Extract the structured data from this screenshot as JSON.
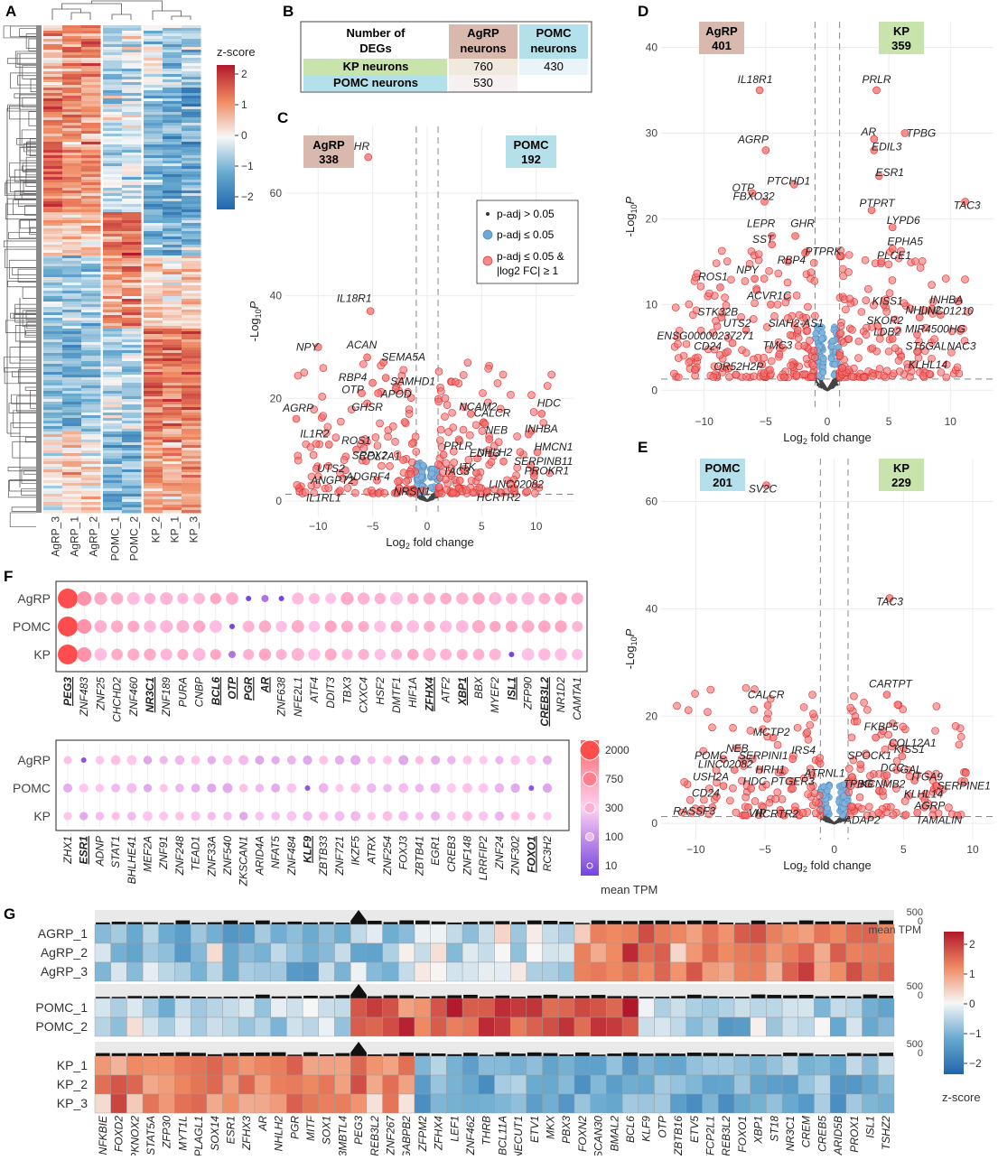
{
  "panel_labels": [
    "A",
    "B",
    "C",
    "D",
    "E",
    "F",
    "G"
  ],
  "panel_a": {
    "samples": [
      "AgRP_3",
      "AgRP_1",
      "AgRP_2",
      "POMC_1",
      "POMC_2",
      "KP_2",
      "KP_1",
      "KP_3"
    ],
    "legend_title": "z-score",
    "legend_ticks": [
      "2",
      "1",
      "0",
      "−1",
      "−2"
    ]
  },
  "panel_b": {
    "corner": "Number of DEGs",
    "col_headers": [
      "AgRP neurons",
      "POMC neurons"
    ],
    "row_headers": [
      "KP neurons",
      "POMC neurons"
    ],
    "cells": [
      [
        "760",
        "430"
      ],
      [
        "530",
        ""
      ]
    ],
    "colors": {
      "agrp": "#d9b8ae",
      "pomc": "#b3e0ea",
      "kp": "#c9e3ad"
    }
  },
  "panel_c": {
    "left_tag": "AgRP",
    "left_count": "338",
    "right_tag": "POMC",
    "right_count": "192",
    "ylabel": "-Log10P",
    "xlabel": "Log2 fold change",
    "xticks": [
      "−10",
      "−5",
      "0",
      "5",
      "10"
    ],
    "yticks": [
      "0",
      "20",
      "40",
      "60"
    ],
    "legend": [
      "p-adj > 0.05",
      "p-adj ≤ 0.05",
      "p-adj ≤ 0.05 &",
      "|log2 FC| ≥ 1"
    ],
    "labels": [
      "GHR",
      "IL18R1",
      "NPY",
      "ACAN",
      "SEMA5A",
      "RBP4",
      "SAMHD1",
      "OTP",
      "APOD",
      "GHSR",
      "AGRP",
      "IL1R2",
      "ROS1",
      "SRPX2",
      "UTS2",
      "COL7A1",
      "ANGPT2",
      "ADGRF4",
      "IL1RL1",
      "HDC",
      "NCAM2",
      "CALCR",
      "INHBA",
      "NEB",
      "PRLR",
      "HMCN1",
      "EDIL3",
      "SERPINB11",
      "NHLH2",
      "NRSN1",
      "ITK",
      "PROKR1",
      "TAC3",
      "LINC02082",
      "HCRTR2"
    ]
  },
  "panel_d": {
    "left_tag": "AgRP",
    "left_count": "401",
    "right_tag": "KP",
    "right_count": "359",
    "ylabel": "-Log10P",
    "xlabel": "Log2 fold change",
    "xticks": [
      "−10",
      "−5",
      "0",
      "5",
      "10"
    ],
    "yticks": [
      "0",
      "10",
      "20",
      "30",
      "40"
    ],
    "labels": [
      "IL18R1",
      "PRLR",
      "AR",
      "TPBG",
      "EDIL3",
      "AGRP",
      "ESR1",
      "OTP",
      "PTCHD1",
      "FBXO32",
      "PTPRT",
      "TAC3",
      "LYPD6",
      "LEPR",
      "GHR",
      "SST",
      "PTPRK",
      "EPHA5",
      "RBP4",
      "PLCE1",
      "NPY",
      "ROS1",
      "NHLH2",
      "ACVR1C",
      "INHBA",
      "STK32B",
      "KISS1",
      "LINC01210",
      "SKOR2",
      "UTS2",
      "SIAH2-AS1",
      "MIR4500HG",
      "LDB2",
      "ENSG00000237271",
      "ST6GALNAC3",
      "CD24",
      "TMC3",
      "KLHL14",
      "OR52H2P"
    ]
  },
  "panel_e": {
    "left_tag": "POMC",
    "left_count": "201",
    "right_tag": "KP",
    "right_count": "229",
    "ylabel": "-Log10P",
    "xlabel": "Log2 fold change",
    "xticks": [
      "−10",
      "−5",
      "0",
      "5",
      "10"
    ],
    "yticks": [
      "0",
      "20",
      "40",
      "60"
    ],
    "labels": [
      "SV2C",
      "TAC3",
      "CARTPT",
      "CALCR",
      "MCTP2",
      "FKBP5",
      "COL12A1",
      "NEB",
      "KISS1",
      "POMC",
      "SERPINI1",
      "IRS4",
      "SPOCK1",
      "GAL",
      "HRH1",
      "ATRNL1",
      "DCC",
      "LINC02082",
      "ITGA9",
      "TPBG",
      "SERPINE1",
      "USH2A",
      "HDC",
      "PTGER3",
      "KCNMB2",
      "KLHL14",
      "CD24",
      "AGRP",
      "RASSF3",
      "VIP",
      "HCRTR2",
      "ADAP2",
      "TAMALIN"
    ]
  },
  "panel_f": {
    "rows": [
      "AgRP",
      "POMC",
      "KP"
    ],
    "genes_top": [
      "PEG3",
      "ZNF483",
      "ZNF25",
      "CHCHD2",
      "ZNF460",
      "NR3C1",
      "ZNF189",
      "PURA",
      "CNBP",
      "BCL6",
      "OTP",
      "PGR",
      "AR",
      "ZNF638",
      "NFE2L1",
      "ATF4",
      "DDIT3",
      "TBX3",
      "CXXC4",
      "HSF2",
      "DMTF1",
      "HIF1A",
      "ZFHX4",
      "ATF2",
      "XBP1",
      "BBX",
      "MYEF2",
      "ISL1",
      "ZFP90",
      "CREB3L2",
      "NR1D2",
      "CAMTA1"
    ],
    "genes_bottom": [
      "ZHX1",
      "ESR1",
      "ADNP",
      "STAT1",
      "BHLHE41",
      "MEF2A",
      "ZNF91",
      "ZNF248",
      "TEAD1",
      "ZNF33A",
      "ZNF540",
      "ZKSCAN1",
      "ARID4A",
      "NFAT5",
      "ZNF484",
      "KLF9",
      "ZBTB33",
      "ZNF721",
      "IKZF5",
      "ATRX",
      "ZNF254",
      "FOXJ3",
      "ZBTB41",
      "EGR1",
      "CREB3",
      "ZNF148",
      "LRRFIP2",
      "ZNF24",
      "ZNF302",
      "FOXO1",
      "RC3H2"
    ],
    "legend_title": "mean TPM",
    "legend_ticks": [
      "2000",
      "750",
      "300",
      "100",
      "10"
    ]
  },
  "panel_g": {
    "rows": [
      "AGRP_1",
      "AgRP_2",
      "AgRP_3",
      "POMC_1",
      "POMC_2",
      "KP_1",
      "KP_2",
      "KP_3"
    ],
    "genes": [
      "NFKBIE",
      "FOXD2",
      "PKNOX2",
      "STAT5A",
      "ZFP30",
      "MYT1L",
      "PLAGL1",
      "SOX14",
      "ESR1",
      "ZFHX3",
      "AR",
      "NHLH2",
      "PGR",
      "MITF",
      "SOX1",
      "L3MBTL4",
      "PEG3",
      "CREB3L2",
      "ZNF267",
      "GABPB2",
      "ZFPM2",
      "ZFHX4",
      "LEF1",
      "ZNF462",
      "THRB",
      "BCL11A",
      "ONECUT1",
      "ETV1",
      "MKX",
      "PBX3",
      "FOXN2",
      "ZSCAN30",
      "BMAL2",
      "BCL6",
      "KLF9",
      "OTP",
      "ZBTB16",
      "ETV5",
      "TFCP2L1",
      "CREB3L2",
      "FOXO1",
      "XBP1",
      "ST18",
      "NR3C1",
      "CREM",
      "CREB5",
      "ARID5B",
      "PROX1",
      "ISL1",
      "TSHZ2"
    ],
    "tpm_title": "mean TPM",
    "tpm_ticks": [
      "500",
      "0"
    ],
    "legend_title": "z-score",
    "legend_ticks": [
      "2",
      "1",
      "0",
      "−1",
      "−2"
    ]
  }
}
